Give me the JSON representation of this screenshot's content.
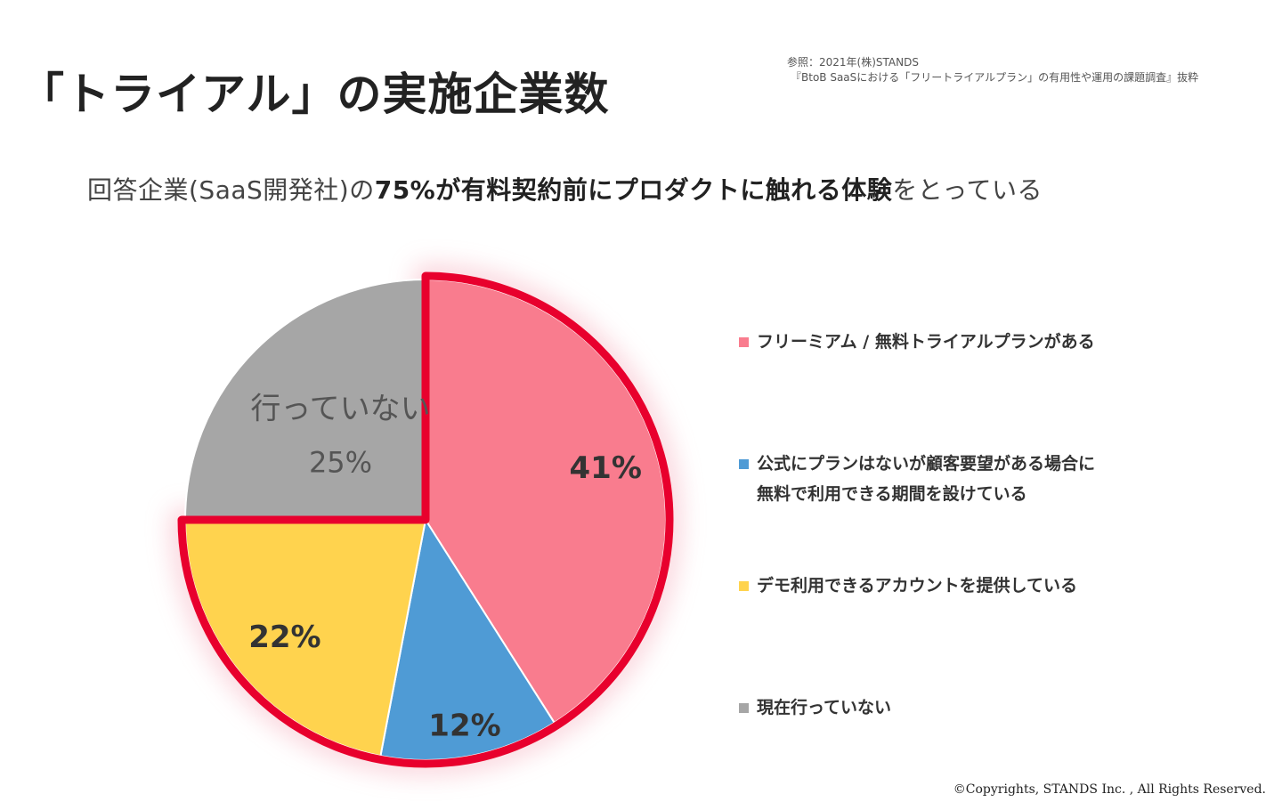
{
  "header": {
    "title": "「トライアル」の実施企業数",
    "source_line1": "参照：2021年(株)STANDS",
    "source_line2": "『BtoB SaaSにおける「フリートライアルプラン」の有用性や運用の課題調査』抜粋"
  },
  "subtitle": {
    "pre": "回答企業(SaaS開発社)の",
    "highlight": "75%が有料契約前にプロダクトに触れる体験",
    "post": "をとっている"
  },
  "colors": {
    "pink": "#F97C8E",
    "blue": "#4F9BD5",
    "yellow": "#FFD34E",
    "gray": "#A6A6A6",
    "highlight_border": "#E8002D"
  },
  "chart_data": {
    "type": "pie",
    "title": "",
    "start_angle_deg": 0,
    "direction": "clockwise",
    "slices": [
      {
        "label": "フリーミアム / 無料トライアルプランがある",
        "value": 41,
        "display": "41%",
        "color": "#F97C8E",
        "highlighted": true
      },
      {
        "label": "公式にプランはないが顧客要望がある場合に無料で利用できる期間を設けている",
        "value": 12,
        "display": "12%",
        "color": "#4F9BD5",
        "highlighted": true
      },
      {
        "label": "デモ利用できるアカウントを提供している",
        "value": 22,
        "display": "22%",
        "color": "#FFD34E",
        "highlighted": true
      },
      {
        "label": "現在行っていない",
        "value": 25,
        "display": "25%",
        "color": "#A6A6A6",
        "highlighted": false,
        "inner_label": "行っていない"
      }
    ],
    "legend_position": "right",
    "highlight_total": "75%"
  },
  "legend": {
    "items": [
      {
        "line1": "フリーミアム / 無料トライアルプランがある",
        "line2": "",
        "color": "#F97C8E"
      },
      {
        "line1": "公式にプランはないが顧客要望がある場合に",
        "line2": "無料で利用できる期間を設けている",
        "color": "#4F9BD5"
      },
      {
        "line1": "デモ利用できるアカウントを提供している",
        "line2": "",
        "color": "#FFD34E"
      },
      {
        "line1": "現在行っていない",
        "line2": "",
        "color": "#A6A6A6"
      }
    ]
  },
  "footer": {
    "copyright": "©Copyrights, STANDS Inc. , All Rights Reserved."
  }
}
